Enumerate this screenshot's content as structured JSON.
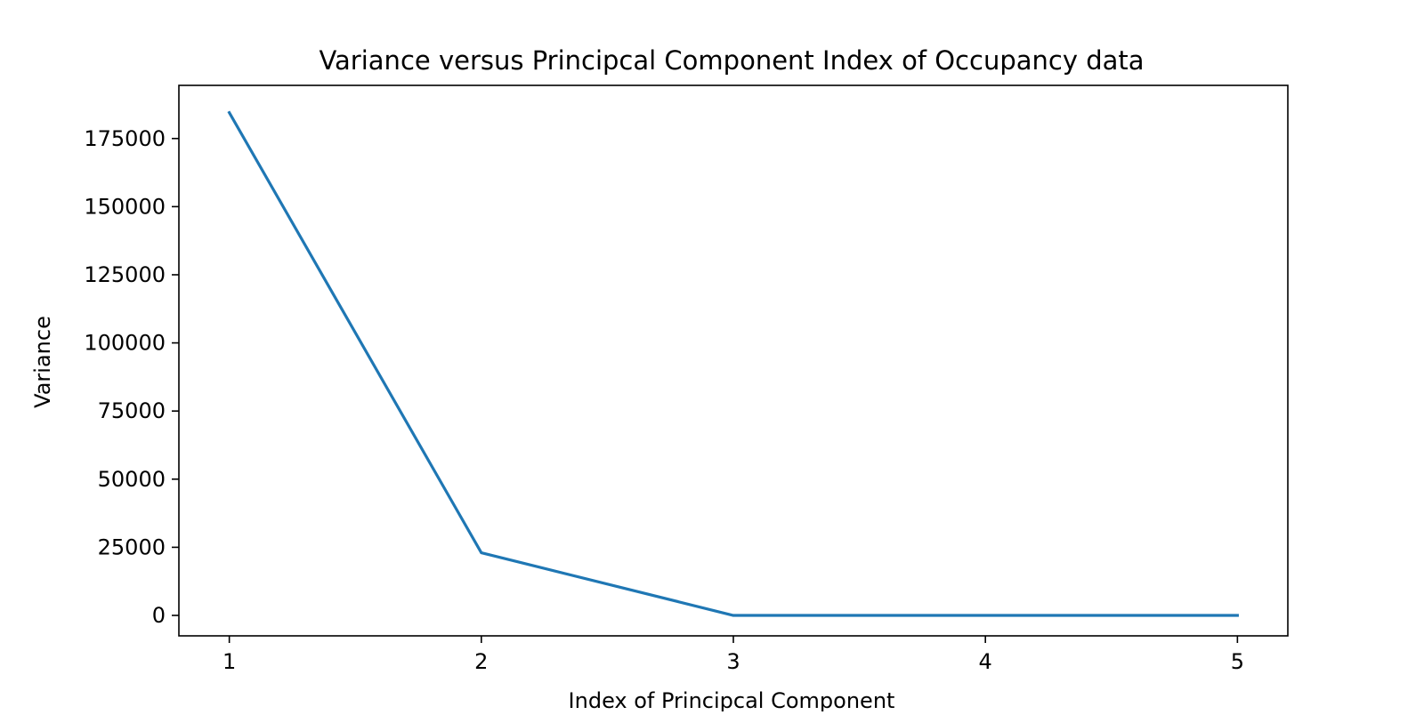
{
  "chart_data": {
    "type": "line",
    "title": "Variance versus Principcal Component Index of Occupancy data",
    "xlabel": "Index of Principcal Component",
    "ylabel": "Variance",
    "x": [
      1,
      2,
      3,
      4,
      5
    ],
    "series": [
      {
        "values": [
          184500,
          23000,
          0,
          0,
          0
        ],
        "color": "#1f77b4"
      }
    ],
    "xlim": [
      0.8,
      5.2
    ],
    "ylim": [
      -7500,
      194500
    ],
    "xticks": [
      1,
      2,
      3,
      4,
      5
    ],
    "yticks": [
      0,
      25000,
      50000,
      75000,
      100000,
      125000,
      150000,
      175000
    ],
    "grid": false,
    "legend": "none"
  }
}
